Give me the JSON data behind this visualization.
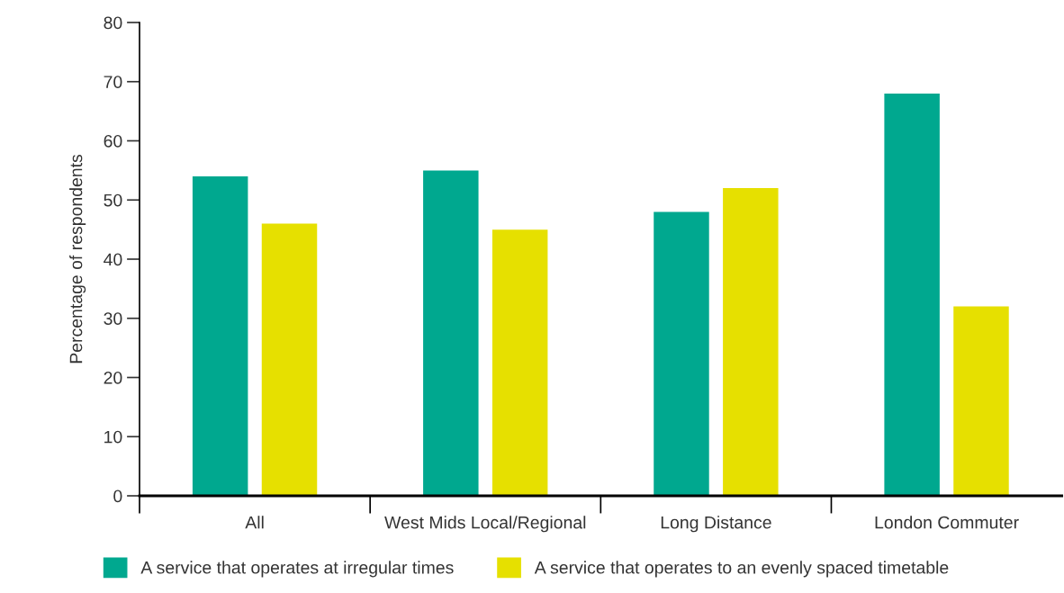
{
  "chart_data": {
    "type": "bar",
    "ylabel": "Percentage of respondents",
    "categories": [
      "All",
      "West Mids Local/Regional",
      "Long Distance",
      "London Commuter"
    ],
    "series": [
      {
        "name": "A service that operates at irregular times",
        "color": "#00a88f",
        "values": [
          54,
          55,
          48,
          68
        ]
      },
      {
        "name": "A service that operates to an evenly spaced timetable",
        "color": "#e6e000",
        "values": [
          46,
          45,
          52,
          32
        ]
      }
    ],
    "ylim": [
      0,
      80
    ],
    "yticks": [
      0,
      10,
      20,
      30,
      40,
      50,
      60,
      70,
      80
    ],
    "grid": false,
    "legend": "bottom"
  }
}
